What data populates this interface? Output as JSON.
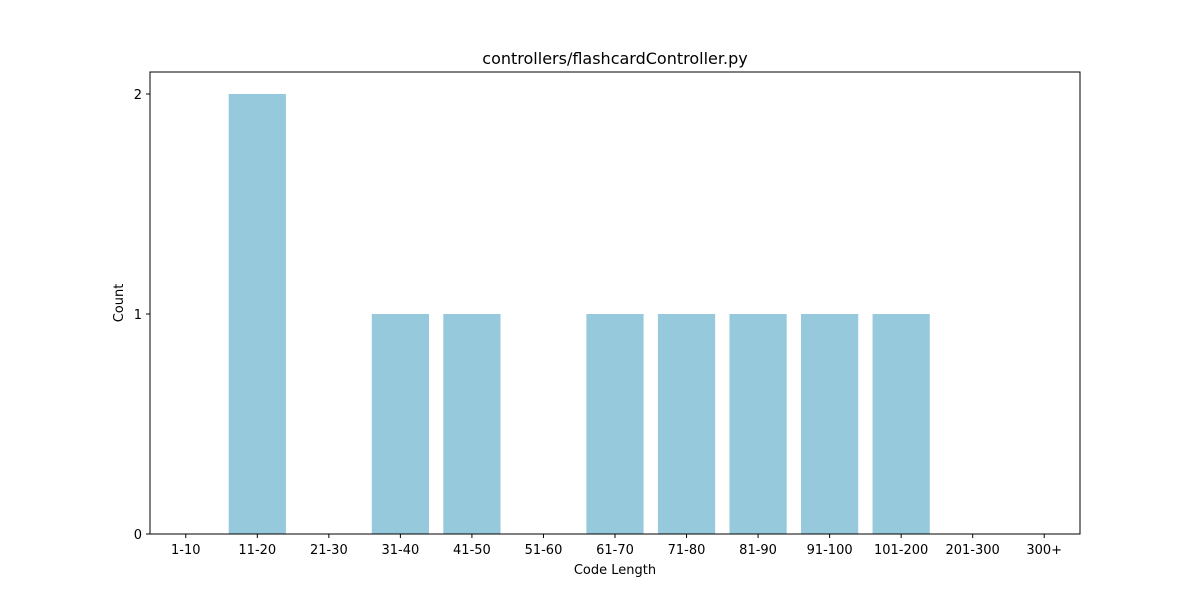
{
  "chart_data": {
    "type": "bar",
    "title": "controllers/flashcardController.py",
    "xlabel": "Code Length",
    "ylabel": "Count",
    "categories": [
      "1-10",
      "11-20",
      "21-30",
      "31-40",
      "41-50",
      "51-60",
      "61-70",
      "71-80",
      "81-90",
      "91-100",
      "101-200",
      "201-300",
      "300+"
    ],
    "values": [
      0,
      2,
      0,
      1,
      1,
      0,
      1,
      1,
      1,
      1,
      1,
      0,
      0
    ],
    "yticks": [
      0,
      1,
      2
    ],
    "ylim": [
      0,
      2.1
    ],
    "bar_color": "#96c9dc",
    "grid": false,
    "legend": "none"
  }
}
